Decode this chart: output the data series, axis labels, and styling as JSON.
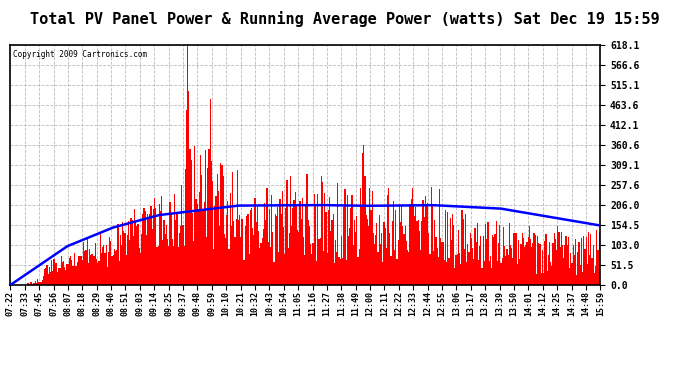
{
  "title": "Total PV Panel Power & Running Average Power (watts) Sat Dec 19 15:59",
  "copyright": "Copyright 2009 Cartronics.com",
  "y_max": 618.1,
  "y_min": 0.0,
  "y_ticks": [
    0.0,
    51.5,
    103.0,
    154.5,
    206.0,
    257.6,
    309.1,
    360.6,
    412.1,
    463.6,
    515.1,
    566.6,
    618.1
  ],
  "x_labels": [
    "07:22",
    "07:33",
    "07:45",
    "07:56",
    "08:07",
    "08:18",
    "08:29",
    "08:40",
    "08:51",
    "09:03",
    "09:14",
    "09:25",
    "09:37",
    "09:48",
    "09:59",
    "10:10",
    "10:21",
    "10:32",
    "10:43",
    "10:54",
    "11:05",
    "11:16",
    "11:27",
    "11:38",
    "11:49",
    "12:00",
    "12:11",
    "12:22",
    "12:33",
    "12:44",
    "12:55",
    "13:06",
    "13:17",
    "13:28",
    "13:39",
    "13:50",
    "14:01",
    "14:12",
    "14:25",
    "14:37",
    "14:48",
    "15:59"
  ],
  "background_color": "#ffffff",
  "bar_color": "#ff0000",
  "avg_line_color": "#0000ff",
  "title_fontsize": 11,
  "grid_color": "#bbbbbb"
}
